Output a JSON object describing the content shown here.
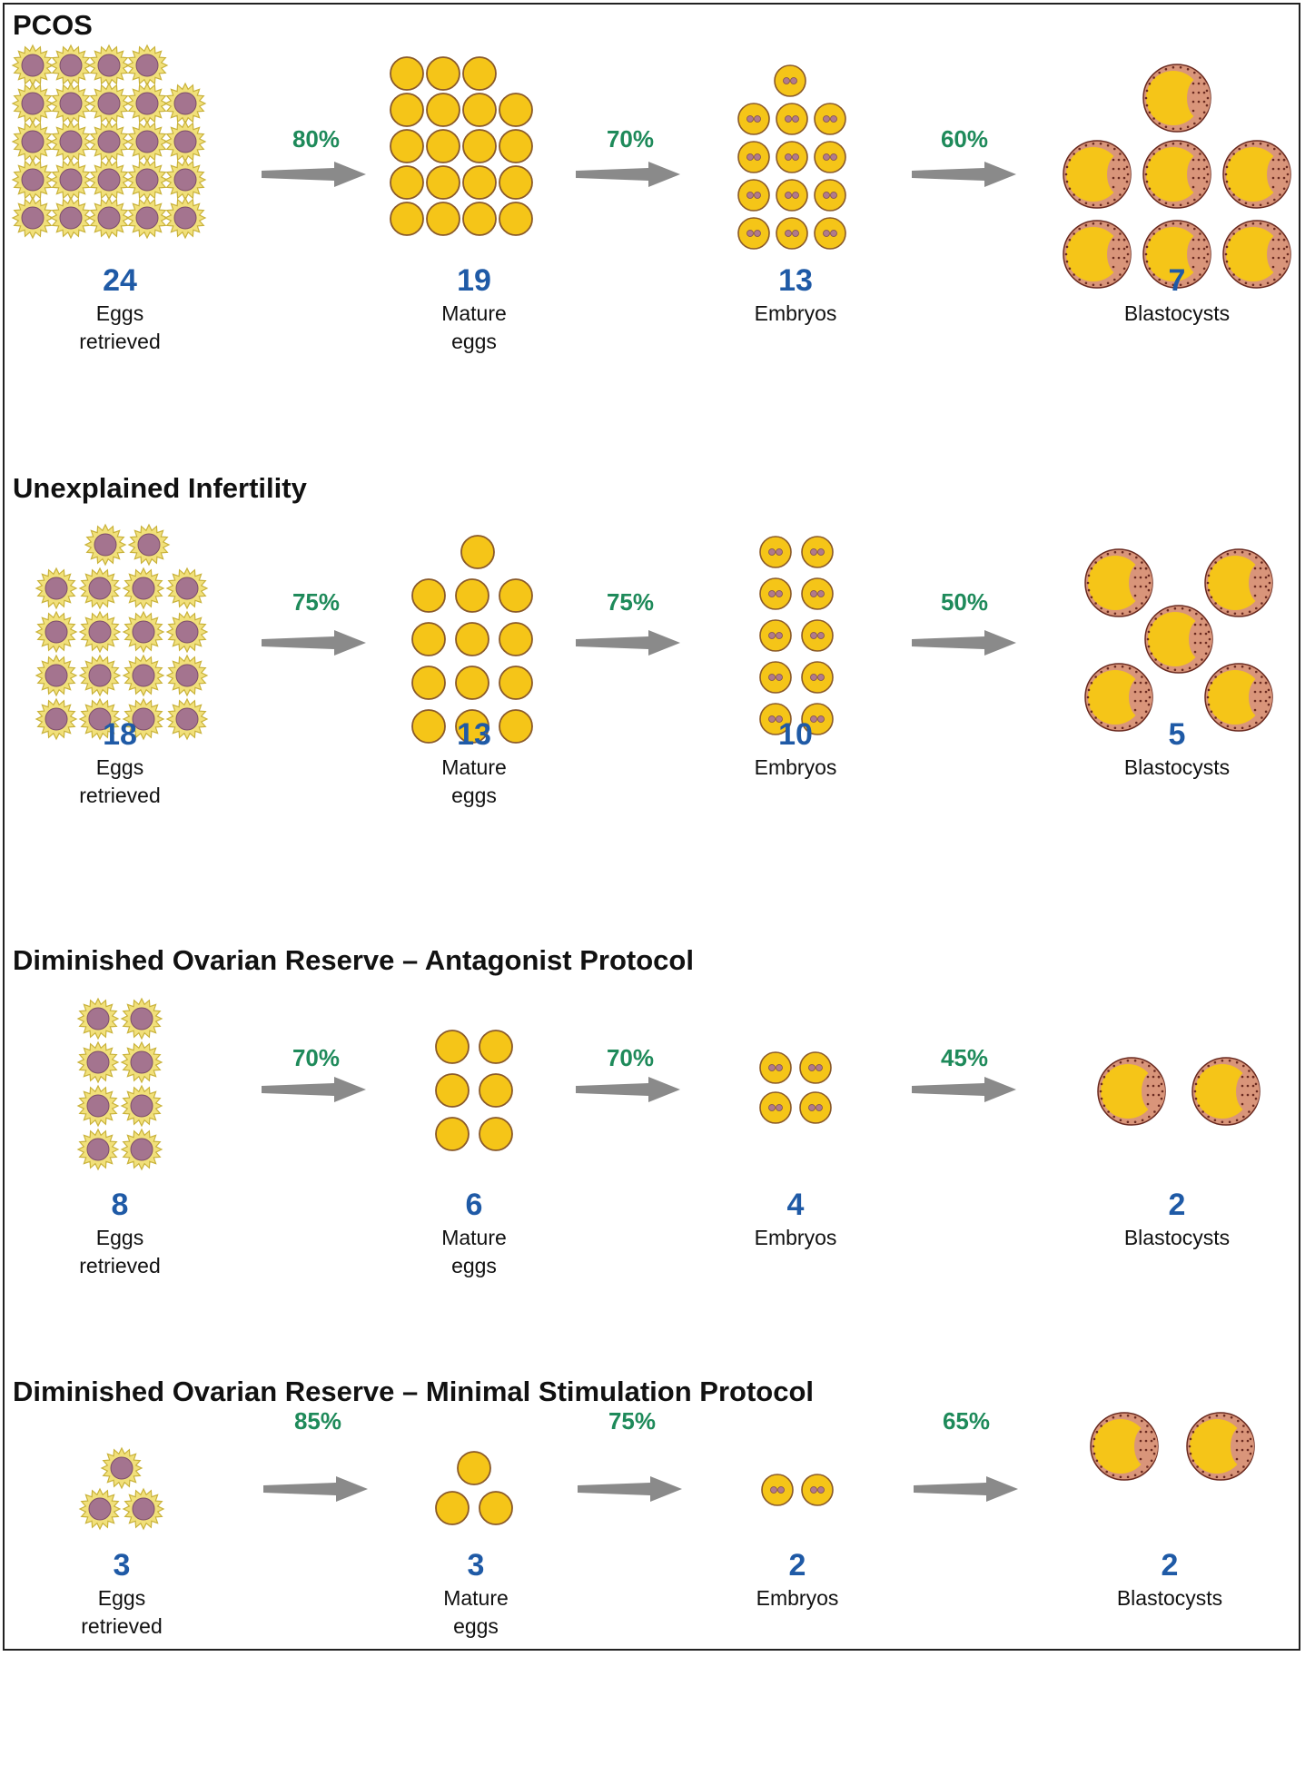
{
  "sections": [
    {
      "title": "PCOS",
      "stages": [
        {
          "count": "24",
          "label_line1": "Eggs",
          "label_line2": "retrieved"
        },
        {
          "count": "19",
          "label_line1": "Mature",
          "label_line2": "eggs"
        },
        {
          "count": "13",
          "label_line1": "Embryos",
          "label_line2": ""
        },
        {
          "count": "7",
          "label_line1": "Blastocysts",
          "label_line2": ""
        }
      ],
      "rates": [
        "80%",
        "70%",
        "60%"
      ]
    },
    {
      "title": "Unexplained Infertility",
      "stages": [
        {
          "count": "18",
          "label_line1": "Eggs",
          "label_line2": "retrieved"
        },
        {
          "count": "13",
          "label_line1": "Mature",
          "label_line2": "eggs"
        },
        {
          "count": "10",
          "label_line1": "Embryos",
          "label_line2": ""
        },
        {
          "count": "5",
          "label_line1": "Blastocysts",
          "label_line2": ""
        }
      ],
      "rates": [
        "75%",
        "75%",
        "50%"
      ]
    },
    {
      "title": "Diminished Ovarian Reserve – Antagonist Protocol",
      "stages": [
        {
          "count": "8",
          "label_line1": "Eggs",
          "label_line2": "retrieved"
        },
        {
          "count": "6",
          "label_line1": "Mature",
          "label_line2": "eggs"
        },
        {
          "count": "4",
          "label_line1": "Embryos",
          "label_line2": ""
        },
        {
          "count": "2",
          "label_line1": "Blastocysts",
          "label_line2": ""
        }
      ],
      "rates": [
        "70%",
        "70%",
        "45%"
      ]
    },
    {
      "title": "Diminished Ovarian Reserve – Minimal Stimulation Protocol",
      "stages": [
        {
          "count": "3",
          "label_line1": "Eggs",
          "label_line2": "retrieved"
        },
        {
          "count": "3",
          "label_line1": "Mature",
          "label_line2": "eggs"
        },
        {
          "count": "2",
          "label_line1": "Embryos",
          "label_line2": ""
        },
        {
          "count": "2",
          "label_line1": "Blastocysts",
          "label_line2": ""
        }
      ],
      "rates": [
        "85%",
        "75%",
        "65%"
      ]
    }
  ],
  "colors": {
    "count": "#1f5aa6",
    "rate": "#1e8a5a",
    "arrow": "#8a8a8a",
    "egg_core": "#a4748f",
    "egg_halo": "#f1e07a",
    "mature_fill": "#f5c518",
    "mature_outline": "#8a5a2a",
    "blastocyst_rim": "#d9957a",
    "blastocyst_dots": "#6a2a20"
  },
  "icons": {
    "egg": "egg-retrieved-icon",
    "mature": "mature-egg-icon",
    "embryo": "embryo-icon",
    "blastocyst": "blastocyst-icon",
    "arrow": "arrow-right-icon"
  }
}
